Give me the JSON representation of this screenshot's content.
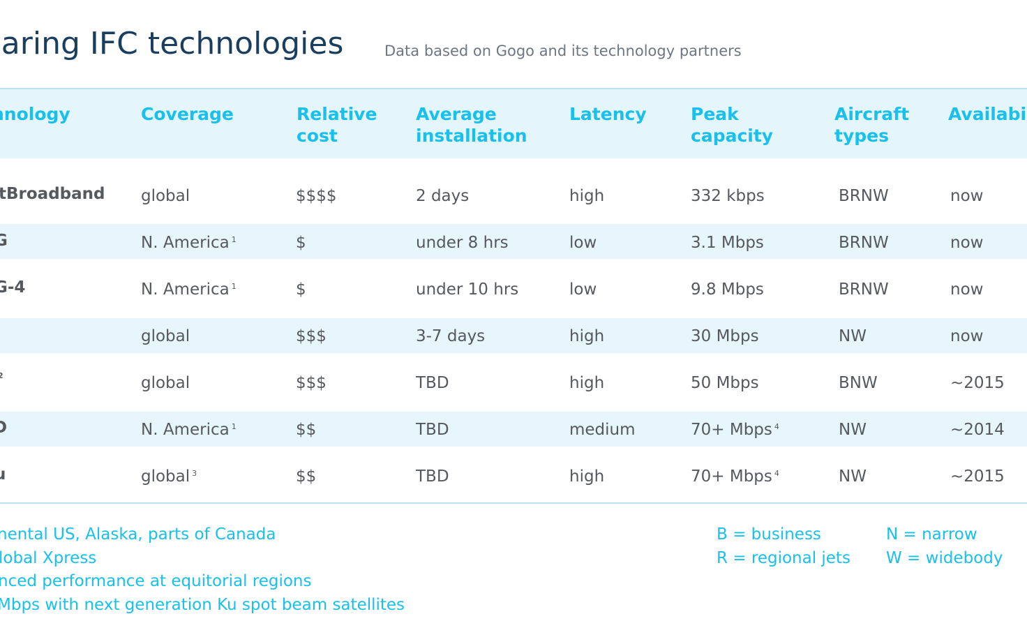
{
  "title": "mparing IFC technologies",
  "subtitle": "Data based on Gogo and its technology partners",
  "headers": {
    "technology": "hnology",
    "coverage": "Coverage",
    "cost": [
      "Relative",
      "cost"
    ],
    "installation": [
      "Average",
      "installation"
    ],
    "latency": "Latency",
    "capacity": [
      "Peak",
      "capacity"
    ],
    "aircraft": [
      "Aircraft",
      "types"
    ],
    "availability": "Availabil"
  },
  "rows": [
    {
      "tech": "ftBroadband",
      "tech_sup": "",
      "coverage": "global",
      "coverage_sup": "",
      "cost": "$$$$",
      "installation": "2 days",
      "latency": "high",
      "capacity": "332 kbps",
      "capacity_sup": "",
      "aircraft": "BRNW",
      "availability": "now"
    },
    {
      "tech": "G",
      "tech_sup": "",
      "coverage": "N. America",
      "coverage_sup": "1",
      "cost": "$",
      "installation": "under 8 hrs",
      "latency": "low",
      "capacity": "3.1 Mbps",
      "capacity_sup": "",
      "aircraft": "BRNW",
      "availability": "now"
    },
    {
      "tech": "G-4",
      "tech_sup": "",
      "coverage": "N. America",
      "coverage_sup": "1",
      "cost": "$",
      "installation": "under 10 hrs",
      "latency": "low",
      "capacity": "9.8 Mbps",
      "capacity_sup": "",
      "aircraft": "BRNW",
      "availability": "now"
    },
    {
      "tech": "",
      "tech_sup": "",
      "coverage": "global",
      "coverage_sup": "",
      "cost": "$$$",
      "installation": "3-7 days",
      "latency": "high",
      "capacity": "30 Mbps",
      "capacity_sup": "",
      "aircraft": "NW",
      "availability": "now"
    },
    {
      "tech": "",
      "tech_sup": "2",
      "coverage": "global",
      "coverage_sup": "",
      "cost": "$$$",
      "installation": "TBD",
      "latency": "high",
      "capacity": "50 Mbps",
      "capacity_sup": "",
      "aircraft": "BNW",
      "availability": "~2015"
    },
    {
      "tech": "D",
      "tech_sup": "",
      "coverage": "N. America",
      "coverage_sup": "1",
      "cost": "$$",
      "installation": "TBD",
      "latency": "medium",
      "capacity": "70+ Mbps",
      "capacity_sup": "4",
      "aircraft": "NW",
      "availability": "~2014"
    },
    {
      "tech": "u",
      "tech_sup": "",
      "coverage": "global",
      "coverage_sup": "3",
      "cost": "$$",
      "installation": "TBD",
      "latency": "high",
      "capacity": "70+ Mbps",
      "capacity_sup": "4",
      "aircraft": "NW",
      "availability": "~2015"
    }
  ],
  "footnotes": [
    "nental US, Alaska, parts of Canada",
    "lobal Xpress",
    "nced performance at equitorial regions",
    "Mbps with next generation Ku spot beam satellites"
  ],
  "legend": {
    "b": "B = business",
    "r": "R = regional jets",
    "n": "N = narrow",
    "w": "W = widebody"
  },
  "colors": {
    "title": "#1a3e5f",
    "accent": "#19c0ec",
    "body_text": "#55595e",
    "band": "#e7f6fc"
  }
}
